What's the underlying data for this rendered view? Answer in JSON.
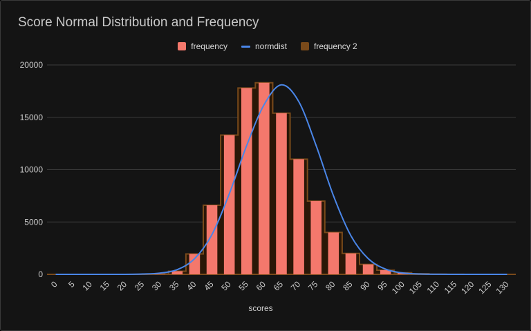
{
  "chart_data": {
    "type": "bar",
    "title": "Score Normal Distribution and Frequency",
    "xlabel": "scores",
    "ylabel": "",
    "ylim": [
      0,
      20000
    ],
    "yticks": [
      0,
      5000,
      10000,
      15000,
      20000
    ],
    "grid": true,
    "legend_position": "top",
    "categories": [
      "0",
      "5",
      "10",
      "15",
      "20",
      "25",
      "30",
      "35",
      "40",
      "45",
      "50",
      "55",
      "60",
      "65",
      "70",
      "75",
      "80",
      "85",
      "90",
      "95",
      "100",
      "105",
      "110",
      "115",
      "120",
      "125",
      "130"
    ],
    "series": [
      {
        "name": "frequency",
        "type": "bar",
        "color": "#f4786c",
        "values": [
          0,
          0,
          0,
          0,
          0,
          0,
          30,
          300,
          1950,
          6600,
          13300,
          17800,
          18300,
          15400,
          11000,
          7000,
          4000,
          2000,
          950,
          400,
          150,
          60,
          20,
          10,
          0,
          0,
          0
        ]
      },
      {
        "name": "normdist",
        "type": "line",
        "color": "#4a86e8",
        "values": [
          0,
          0,
          0,
          0,
          0,
          30,
          120,
          450,
          1500,
          3800,
          7700,
          12300,
          16200,
          18100,
          16500,
          12300,
          7500,
          3700,
          1500,
          500,
          130,
          30,
          5,
          0,
          0,
          0,
          0
        ]
      },
      {
        "name": "frequency 2",
        "type": "step-area",
        "color": "#7a4a1a",
        "values": [
          0,
          0,
          0,
          0,
          0,
          0,
          30,
          300,
          1950,
          6600,
          13300,
          17800,
          18300,
          15400,
          11000,
          7000,
          4000,
          2000,
          950,
          400,
          150,
          60,
          20,
          10,
          0,
          0,
          0
        ]
      }
    ]
  }
}
